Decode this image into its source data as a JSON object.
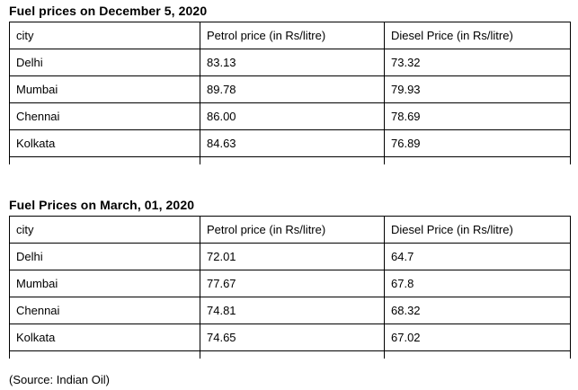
{
  "colors": {
    "background": "#ffffff",
    "table_border": "#000000",
    "text": "#000000"
  },
  "tables": [
    {
      "title": "Fuel prices on December 5, 2020",
      "headers": [
        "city",
        "Petrol price (in Rs/litre)",
        "Diesel Price (in Rs/litre)"
      ],
      "rows": [
        [
          "Delhi",
          "83.13",
          "73.32"
        ],
        [
          "Mumbai",
          "89.78",
          "79.93"
        ],
        [
          "Chennai",
          "86.00",
          "78.69"
        ],
        [
          "Kolkata",
          "84.63",
          "76.89"
        ]
      ]
    },
    {
      "title": "Fuel Prices on March, 01, 2020",
      "headers": [
        "city",
        "Petrol price (in Rs/litre)",
        "Diesel Price (in Rs/litre)"
      ],
      "rows": [
        [
          "Delhi",
          "72.01",
          "64.7"
        ],
        [
          "Mumbai",
          "77.67",
          "67.8"
        ],
        [
          "Chennai",
          "74.81",
          "68.32"
        ],
        [
          "Kolkata",
          "74.65",
          "67.02"
        ]
      ]
    }
  ],
  "source_note": "(Source: Indian Oil)"
}
